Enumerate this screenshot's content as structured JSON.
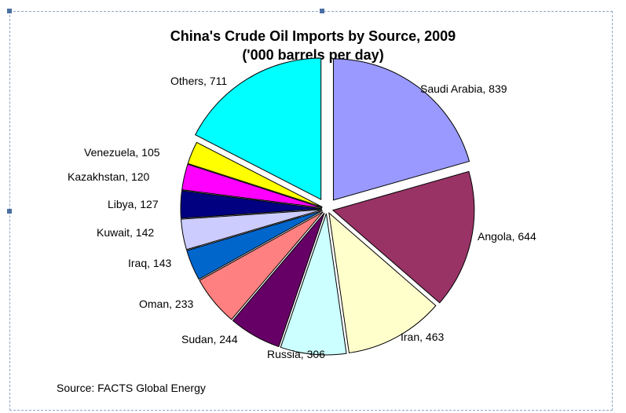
{
  "chart_data": {
    "type": "pie",
    "title": "China's Crude Oil Imports by Source, 2009",
    "subtitle": "('000 barrels per day)",
    "source": "Source: FACTS Global Energy",
    "slices": [
      {
        "label": "Saudi Arabia, 839",
        "value": 839,
        "color": "#9999ff"
      },
      {
        "label": "Angola, 644",
        "value": 644,
        "color": "#993366"
      },
      {
        "label": "Iran, 463",
        "value": 463,
        "color": "#ffffcc"
      },
      {
        "label": "Russia, 306",
        "value": 306,
        "color": "#ccffff"
      },
      {
        "label": "Sudan, 244",
        "value": 244,
        "color": "#660066"
      },
      {
        "label": "Oman, 233",
        "value": 233,
        "color": "#ff8080"
      },
      {
        "label": "Iraq, 143",
        "value": 143,
        "color": "#0066cc"
      },
      {
        "label": "Kuwait, 142",
        "value": 142,
        "color": "#ccccff"
      },
      {
        "label": "Libya, 127",
        "value": 127,
        "color": "#000080"
      },
      {
        "label": "Kazakhstan, 120",
        "value": 120,
        "color": "#ff00ff"
      },
      {
        "label": "Venezuela, 105",
        "value": 105,
        "color": "#ffff00"
      },
      {
        "label": "Others, 711",
        "value": 711,
        "color": "#00ffff"
      }
    ]
  }
}
